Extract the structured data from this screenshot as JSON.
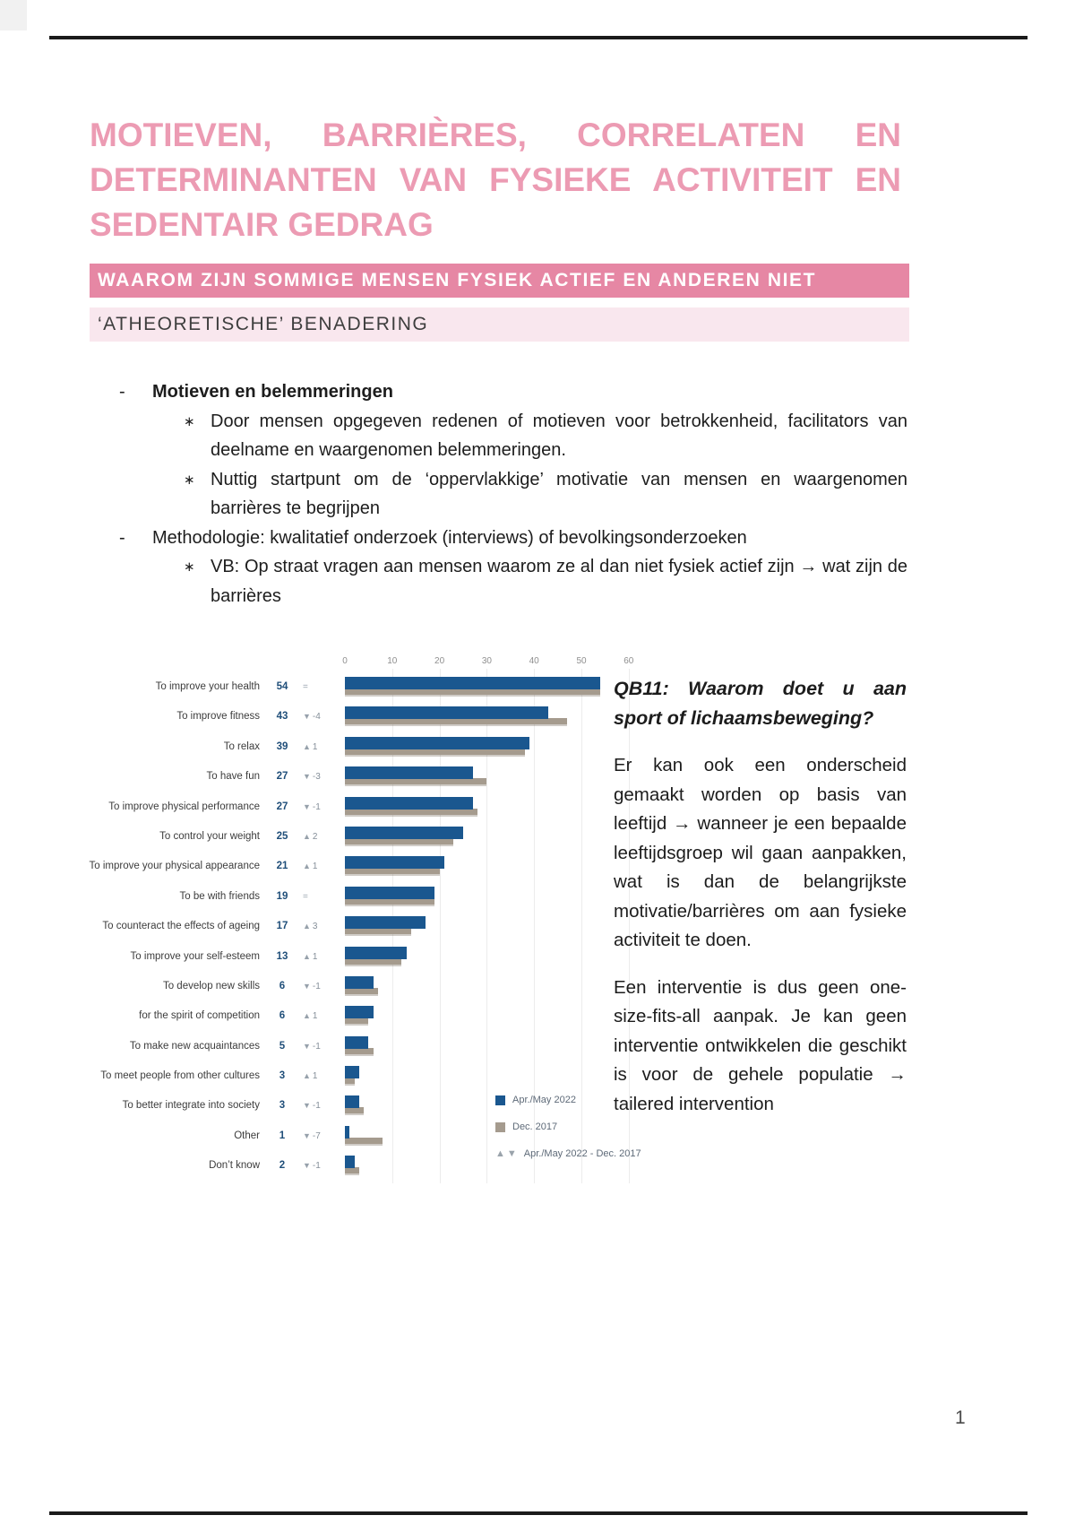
{
  "title": {
    "lines": [
      "MOTIEVEN, BARRIÈRES, CORRELATEN EN",
      "DETERMINANTEN VAN FYSIEKE ACTIVITEIT EN",
      "SEDENTAIR GEDRAG"
    ]
  },
  "banner": {
    "text": "WAAROM ZIJN SOMMIGE MENSEN FYSIEK ACTIEF EN ANDEREN NIET"
  },
  "subheading": {
    "text": "‘ATHEORETISCHE’ BENADERING"
  },
  "bullets": {
    "level1_marker": "-",
    "level2_marker": "∗",
    "item1_label": "Motieven en belemmeringen",
    "item1_sub1": "Door mensen opgegeven redenen of motieven voor betrokkenheid, facilitators van deelname en waargenomen belemmeringen.",
    "item1_sub2": "Nuttig startpunt om de ‘oppervlakkige’ motivatie van mensen en waargenomen barrières te begrijpen",
    "item2_label": "Methodologie: kwalitatief onderzoek (interviews) of bevolkingsonderzoeken",
    "item2_sub1": "VB: Op straat vragen aan mensen waarom ze al dan niet fysiek actief zijn → wat zijn de barrières"
  },
  "chart_data": {
    "type": "bar",
    "orientation": "horizontal",
    "xlim": [
      0,
      60
    ],
    "x_ticks": [
      0,
      10,
      20,
      30,
      40,
      50,
      60
    ],
    "grid": true,
    "legend_position": "bottom-right",
    "categories": [
      "To improve your health",
      "To improve fitness",
      "To relax",
      "To have fun",
      "To improve physical performance",
      "To control your weight",
      "To improve your physical appearance",
      "To be with friends",
      "To counteract the effects of ageing",
      "To improve your self-esteem",
      "To develop new skills",
      "for the spirit of competition",
      "To make new acquaintances",
      "To meet people from other cultures",
      "To better integrate into society",
      "Other",
      "Don’t know"
    ],
    "series": [
      {
        "name": "Apr./May 2022",
        "values": [
          54,
          43,
          39,
          27,
          27,
          25,
          21,
          19,
          17,
          13,
          6,
          6,
          5,
          3,
          3,
          1,
          2
        ]
      },
      {
        "name": "Dec. 2017",
        "values": [
          54,
          47,
          38,
          30,
          28,
          23,
          20,
          19,
          14,
          12,
          7,
          5,
          6,
          2,
          4,
          8,
          3
        ]
      }
    ],
    "rows": [
      {
        "label": "To improve your health",
        "value": 54,
        "dir": "same",
        "delta": "=",
        "prev": 54
      },
      {
        "label": "To improve fitness",
        "value": 43,
        "dir": "down",
        "delta": "-4",
        "prev": 47
      },
      {
        "label": "To relax",
        "value": 39,
        "dir": "up",
        "delta": "1",
        "prev": 38
      },
      {
        "label": "To have fun",
        "value": 27,
        "dir": "down",
        "delta": "-3",
        "prev": 30
      },
      {
        "label": "To improve physical performance",
        "value": 27,
        "dir": "down",
        "delta": "-1",
        "prev": 28
      },
      {
        "label": "To control your weight",
        "value": 25,
        "dir": "up",
        "delta": "2",
        "prev": 23
      },
      {
        "label": "To improve your physical appearance",
        "value": 21,
        "dir": "up",
        "delta": "1",
        "prev": 20
      },
      {
        "label": "To be with friends",
        "value": 19,
        "dir": "same",
        "delta": "=",
        "prev": 19
      },
      {
        "label": "To counteract the effects of ageing",
        "value": 17,
        "dir": "up",
        "delta": "3",
        "prev": 14
      },
      {
        "label": "To improve your self-esteem",
        "value": 13,
        "dir": "up",
        "delta": "1",
        "prev": 12
      },
      {
        "label": "To develop new skills",
        "value": 6,
        "dir": "down",
        "delta": "-1",
        "prev": 7
      },
      {
        "label": "for the spirit of competition",
        "value": 6,
        "dir": "up",
        "delta": "1",
        "prev": 5
      },
      {
        "label": "To make new acquaintances",
        "value": 5,
        "dir": "down",
        "delta": "-1",
        "prev": 6
      },
      {
        "label": "To meet people from other cultures",
        "value": 3,
        "dir": "up",
        "delta": "1",
        "prev": 2
      },
      {
        "label": "To better integrate into society",
        "value": 3,
        "dir": "down",
        "delta": "-1",
        "prev": 4
      },
      {
        "label": "Other",
        "value": 1,
        "dir": "down",
        "delta": "-7",
        "prev": 8
      },
      {
        "label": "Don’t know",
        "value": 2,
        "dir": "down",
        "delta": "-1",
        "prev": 3
      }
    ],
    "legend": [
      "Apr./May 2022",
      "Dec. 2017",
      "Apr./May 2022 - Dec. 2017"
    ],
    "legend_triangles": "▲▼"
  },
  "right_column": {
    "heading_line1": "QB11: Waarom doet u aan",
    "heading_line2": "sport of lichaamsbeweging?",
    "para1": "Er kan ook een onderscheid gemaakt worden op basis van leeftijd → wanneer je een bepaalde leeftijdsgroep wil gaan aanpakken, wat is dan de belangrijkste motivatie/barrières om aan fysieke activiteit te doen.",
    "para2": "Een interventie is dus geen one-size-fits-all aanpak. Je kan geen interventie ontwikkelen die geschikt is voor de gehele populatie → tailered intervention"
  },
  "page": {
    "number": "1"
  },
  "colors": {
    "title_pink": "#EC9BB3",
    "banner_pink": "#E687A4",
    "band_light_pink": "#F9E7EE",
    "bar_blue_2022": "#1A578F",
    "bar_gray_2017": "#A59B8E",
    "value_navy": "#1F4E79",
    "rule_black": "#1B1B1B"
  }
}
